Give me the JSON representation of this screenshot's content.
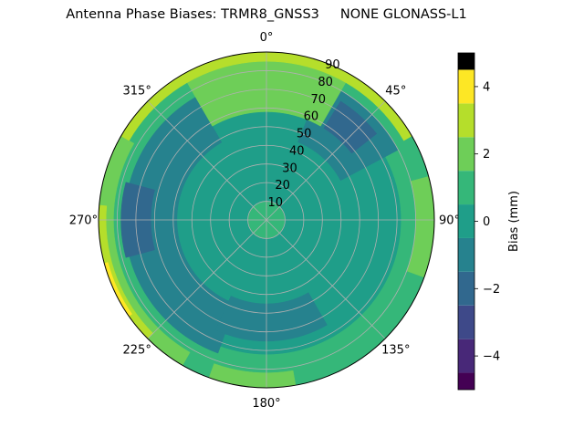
{
  "chart_data": {
    "type": "heatmap",
    "projection": "polar",
    "title": "Antenna Phase Biases: TRMR8_GNSS3     NONE GLONASS-L1",
    "angular_ticks": [
      "0°",
      "45°",
      "90°",
      "135°",
      "180°",
      "225°",
      "270°",
      "315°"
    ],
    "radial_ticks": [
      "10",
      "20",
      "30",
      "40",
      "50",
      "60",
      "70",
      "80",
      "90"
    ],
    "radial_range": [
      0,
      90
    ],
    "grid": true,
    "colorbar": {
      "label": "Bias (mm)",
      "range": [
        -5,
        5
      ],
      "ticks": [
        "−4",
        "−2",
        "0",
        "2",
        "4"
      ],
      "levels": [
        -5,
        -4.5,
        -3.5,
        -2.5,
        -1.5,
        -0.5,
        0.5,
        1.5,
        2.5,
        3.5,
        4.5,
        5
      ],
      "colors": [
        "#440154",
        "#482878",
        "#3e4989",
        "#31688e",
        "#26828e",
        "#1f9e89",
        "#35b779",
        "#6ece58",
        "#b5de2b",
        "#fde725"
      ]
    },
    "regions": [
      {
        "level": "0 to 1",
        "az": [
          0,
          360
        ],
        "zenith": [
          0,
          90
        ]
      },
      {
        "level": "-1 to 0",
        "az": [
          0,
          360
        ],
        "zenith": [
          10,
          72
        ]
      },
      {
        "level": "-2 to -1",
        "az": [
          200,
          330
        ],
        "zenith": [
          48,
          76
        ]
      },
      {
        "level": "-2 to -1",
        "az": [
          22,
          62
        ],
        "zenith": [
          45,
          80
        ]
      },
      {
        "level": "-2 to -1",
        "az": [
          150,
          205
        ],
        "zenith": [
          45,
          65
        ]
      },
      {
        "level": "-3 to -2",
        "az": [
          255,
          285
        ],
        "zenith": [
          62,
          78
        ]
      },
      {
        "level": "-3 to -2",
        "az": [
          32,
          52
        ],
        "zenith": [
          58,
          75
        ]
      },
      {
        "level": "1 to 2",
        "az": [
          330,
          30
        ],
        "zenith": [
          58,
          88
        ]
      },
      {
        "level": "1 to 2",
        "az": [
          210,
          300
        ],
        "zenith": [
          82,
          90
        ]
      },
      {
        "level": "1 to 2",
        "az": [
          75,
          110
        ],
        "zenith": [
          80,
          90
        ]
      },
      {
        "level": "1 to 2",
        "az": [
          170,
          200
        ],
        "zenith": [
          82,
          90
        ]
      },
      {
        "level": "2 to 3",
        "az": [
          300,
          60
        ],
        "zenith": [
          85,
          90
        ]
      },
      {
        "level": "2 to 3",
        "az": [
          225,
          275
        ],
        "zenith": [
          86,
          90
        ]
      },
      {
        "level": "3 to 4",
        "az": [
          235,
          255
        ],
        "zenith": [
          88,
          90
        ]
      }
    ]
  }
}
